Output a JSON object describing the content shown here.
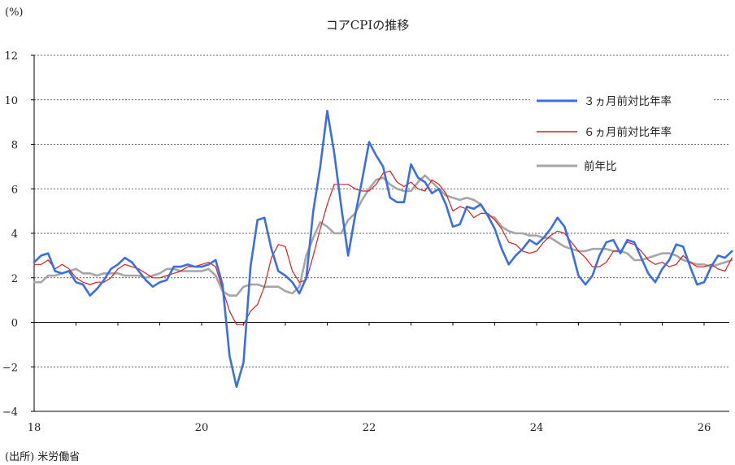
{
  "chart_data": {
    "type": "line",
    "title": "コアCPIの推移",
    "ylabel": "(%)",
    "source": "(出所) 米労働省",
    "ylim": [
      -4,
      12
    ],
    "yticks": [
      -4,
      -2,
      0,
      2,
      4,
      6,
      8,
      10,
      12
    ],
    "ytick_labels": [
      "−4",
      "−2",
      "0",
      "2",
      "4",
      "6",
      "8",
      "10",
      "12"
    ],
    "x_start": 2018.0,
    "x_step": 0.083333,
    "xlim": [
      2018,
      2026.34
    ],
    "xticks": [
      18,
      20,
      22,
      24,
      26
    ],
    "xtick_labels": [
      "18",
      "20",
      "22",
      "24",
      "26"
    ],
    "grid": true,
    "legend_position": "top-right",
    "series": [
      {
        "name": "３ヵ月前対比年率",
        "color": "#3a6ee8",
        "values": [
          2.7,
          3.0,
          3.1,
          2.3,
          2.2,
          2.3,
          1.8,
          1.7,
          1.2,
          1.5,
          1.9,
          2.4,
          2.6,
          2.9,
          2.7,
          2.3,
          1.9,
          1.6,
          1.8,
          1.9,
          2.5,
          2.5,
          2.6,
          2.5,
          2.5,
          2.6,
          2.8,
          1.7,
          -1.5,
          -2.9,
          -1.8,
          2.5,
          4.6,
          4.7,
          3.3,
          2.3,
          2.1,
          1.8,
          1.3,
          2.0,
          5.0,
          7.0,
          9.5,
          7.6,
          5.2,
          3.0,
          4.8,
          6.4,
          8.1,
          7.5,
          7.0,
          5.6,
          5.4,
          5.4,
          7.1,
          6.5,
          6.3,
          5.8,
          6.0,
          5.3,
          4.3,
          4.4,
          5.2,
          5.1,
          5.3,
          4.8,
          4.2,
          3.3,
          2.6,
          3.0,
          3.3,
          3.7,
          3.5,
          3.8,
          4.2,
          4.7,
          4.3,
          3.3,
          2.1,
          1.7,
          2.1,
          3.0,
          3.6,
          3.7,
          3.1,
          3.7,
          3.6,
          2.9,
          2.2,
          1.8,
          2.4,
          2.8,
          3.5,
          3.4,
          2.5,
          1.7,
          1.8,
          2.5,
          3.0,
          2.9,
          3.2
        ]
      },
      {
        "name": "６ヵ月前対比年率",
        "color": "#e01c1c",
        "values": [
          2.6,
          2.6,
          2.8,
          2.4,
          2.6,
          2.4,
          2.0,
          1.8,
          1.7,
          1.8,
          1.8,
          2.0,
          2.4,
          2.6,
          2.5,
          2.4,
          2.2,
          2.0,
          2.0,
          2.1,
          2.2,
          2.3,
          2.5,
          2.5,
          2.6,
          2.7,
          2.5,
          1.5,
          0.5,
          -0.1,
          -0.1,
          0.5,
          0.8,
          1.6,
          2.9,
          3.5,
          3.4,
          2.3,
          1.8,
          1.9,
          3.0,
          4.2,
          5.3,
          6.2,
          6.2,
          6.2,
          6.0,
          5.9,
          5.9,
          6.2,
          6.7,
          6.8,
          6.3,
          6.1,
          6.3,
          6.0,
          5.9,
          6.4,
          6.2,
          5.8,
          5.0,
          5.2,
          5.1,
          4.7,
          4.9,
          4.9,
          4.6,
          4.2,
          3.6,
          3.5,
          3.2,
          3.1,
          3.2,
          3.6,
          3.9,
          4.1,
          4.0,
          3.6,
          3.2,
          2.9,
          2.5,
          2.5,
          2.7,
          3.2,
          3.2,
          3.6,
          3.5,
          3.2,
          2.8,
          2.6,
          2.7,
          2.5,
          2.6,
          3.0,
          2.7,
          2.5,
          2.5,
          2.6,
          2.4,
          2.3,
          2.9
        ]
      },
      {
        "name": "前年比",
        "color": "#a6a6a6",
        "values": [
          1.8,
          1.8,
          2.1,
          2.1,
          2.2,
          2.3,
          2.4,
          2.2,
          2.2,
          2.1,
          2.2,
          2.2,
          2.2,
          2.1,
          2.1,
          2.1,
          2.0,
          2.1,
          2.2,
          2.4,
          2.4,
          2.3,
          2.3,
          2.3,
          2.3,
          2.4,
          2.1,
          1.4,
          1.2,
          1.2,
          1.6,
          1.7,
          1.7,
          1.6,
          1.6,
          1.6,
          1.4,
          1.3,
          1.6,
          3.0,
          3.8,
          4.5,
          4.3,
          4.0,
          4.0,
          4.6,
          4.9,
          5.5,
          6.0,
          6.4,
          6.5,
          6.2,
          6.0,
          5.9,
          5.9,
          6.3,
          6.6,
          6.3,
          6.0,
          5.7,
          5.6,
          5.5,
          5.6,
          5.5,
          5.3,
          4.8,
          4.7,
          4.3,
          4.1,
          4.0,
          4.0,
          3.9,
          3.9,
          3.8,
          3.8,
          3.6,
          3.4,
          3.3,
          3.2,
          3.2,
          3.3,
          3.3,
          3.3,
          3.2,
          3.2,
          3.1,
          2.8,
          2.8,
          2.9,
          3.0,
          3.1,
          3.1,
          3.0,
          2.8,
          2.7,
          2.6,
          2.6,
          2.5,
          2.6,
          2.7,
          2.8
        ]
      }
    ]
  }
}
